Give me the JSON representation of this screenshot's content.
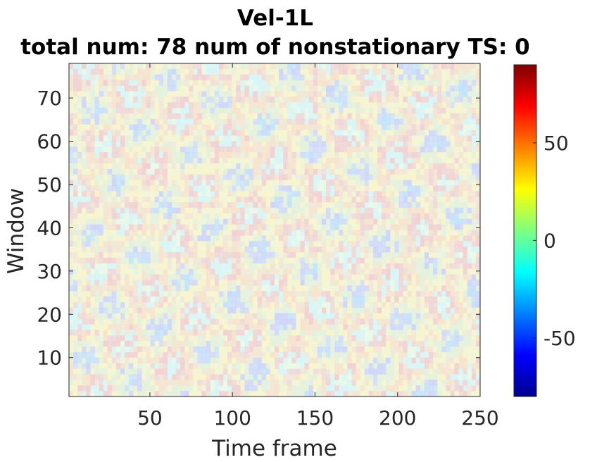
{
  "chart_data": {
    "type": "heatmap",
    "title": "Vel-1L",
    "subtitle": "total num: 78 num of nonstationary TS: 0",
    "xlabel": "Time frame",
    "ylabel": "Window",
    "xlim": [
      1,
      250
    ],
    "ylim": [
      1,
      78
    ],
    "xticks": [
      50,
      100,
      150,
      200,
      250
    ],
    "yticks": [
      10,
      20,
      30,
      40,
      50,
      60,
      70
    ],
    "colorbar": {
      "colormap": "jet",
      "clim": [
        -80,
        90
      ],
      "ticks": [
        -50,
        0,
        50
      ],
      "tick_labels": [
        "-50",
        "0",
        "50"
      ]
    },
    "values_description": "",
    "grid": false
  }
}
